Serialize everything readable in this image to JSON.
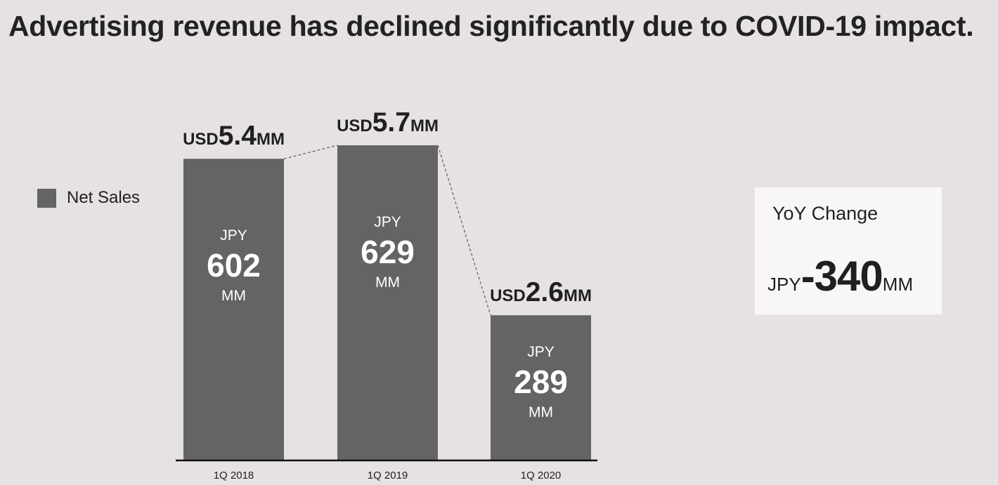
{
  "title": "Advertising revenue has declined significantly due to COVID-19 impact.",
  "legend": {
    "label": "Net Sales",
    "color": "#646464"
  },
  "yoy": {
    "title": "YoY Change",
    "currency": "JPY",
    "value": "-340",
    "unit": "MM"
  },
  "chart_data": {
    "type": "bar",
    "categories": [
      "1Q 2018",
      "1Q 2019",
      "1Q 2020"
    ],
    "series": [
      {
        "name": "Net Sales",
        "values": [
          602,
          629,
          289
        ]
      }
    ],
    "bar_labels": [
      {
        "currency": "JPY",
        "value": "602",
        "unit": "MM"
      },
      {
        "currency": "JPY",
        "value": "629",
        "unit": "MM"
      },
      {
        "currency": "JPY",
        "value": "289",
        "unit": "MM"
      }
    ],
    "top_labels": [
      {
        "currency": "USD",
        "value": "5.4",
        "unit": "MM"
      },
      {
        "currency": "USD",
        "value": "5.7",
        "unit": "MM"
      },
      {
        "currency": "USD",
        "value": "2.6",
        "unit": "MM"
      }
    ],
    "connector": "dashed",
    "bar_color": "#646464",
    "ylim": [
      0,
      629
    ]
  }
}
